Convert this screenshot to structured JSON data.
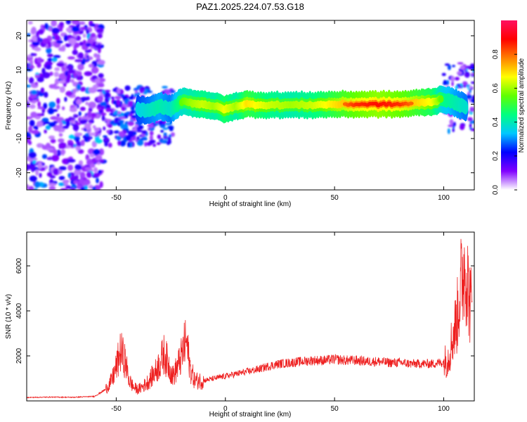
{
  "title": "PAZ1.2025.224.07.53.G18",
  "chart_data": [
    {
      "type": "heatmap",
      "xlabel": "Height of straight line (km)",
      "ylabel": "Frequency (Hz)",
      "xlim": [
        -91,
        114
      ],
      "ylim": [
        -25,
        24.5
      ],
      "xticks": [
        -50,
        0,
        50,
        100
      ],
      "yticks": [
        -20,
        -10,
        0,
        10,
        20
      ],
      "ridge": [
        {
          "x": -40,
          "y": -1.5,
          "a": 0.35
        },
        {
          "x": -35,
          "y": -2.0,
          "a": 0.4
        },
        {
          "x": -30,
          "y": -0.5,
          "a": 0.45
        },
        {
          "x": -25,
          "y": -1.5,
          "a": 0.4
        },
        {
          "x": -20,
          "y": 0.8,
          "a": 0.55
        },
        {
          "x": -15,
          "y": 0.3,
          "a": 0.6
        },
        {
          "x": -10,
          "y": 0.0,
          "a": 0.65
        },
        {
          "x": -5,
          "y": -0.5,
          "a": 0.6
        },
        {
          "x": 0,
          "y": -1.5,
          "a": 0.7
        },
        {
          "x": 5,
          "y": -0.5,
          "a": 0.6
        },
        {
          "x": 10,
          "y": 0.0,
          "a": 0.75
        },
        {
          "x": 20,
          "y": -0.2,
          "a": 0.65
        },
        {
          "x": 30,
          "y": -0.2,
          "a": 0.6
        },
        {
          "x": 40,
          "y": -0.2,
          "a": 0.65
        },
        {
          "x": 50,
          "y": 0.0,
          "a": 0.75
        },
        {
          "x": 60,
          "y": 0.0,
          "a": 0.85
        },
        {
          "x": 70,
          "y": 0.0,
          "a": 0.9
        },
        {
          "x": 80,
          "y": 0.0,
          "a": 0.85
        },
        {
          "x": 90,
          "y": 0.5,
          "a": 0.75
        },
        {
          "x": 95,
          "y": 0.8,
          "a": 0.7
        },
        {
          "x": 100,
          "y": 1.5,
          "a": 0.5
        },
        {
          "x": 105,
          "y": 0.5,
          "a": 0.45
        },
        {
          "x": 110,
          "y": -1.0,
          "a": 0.4
        }
      ],
      "colorbar": {
        "label": "Normalized spectral amplitude",
        "ticks": [
          0.0,
          0.2,
          0.4,
          0.6,
          0.8
        ],
        "tick_labels": [
          "0.0",
          "0.2",
          "0.4",
          "0.6",
          "0.8"
        ],
        "range": [
          0,
          1
        ],
        "colors": [
          "#ffffff",
          "#8000ff",
          "#0000ff",
          "#00c8ff",
          "#00ff80",
          "#60ff00",
          "#ffff00",
          "#ff8000",
          "#ff0000",
          "#ff1060"
        ]
      }
    },
    {
      "type": "line",
      "xlabel": "Height of straight line (km)",
      "ylabel": "SNR (10 * v/v)",
      "xlim": [
        -91,
        114
      ],
      "ylim": [
        0,
        7500
      ],
      "xticks": [
        -50,
        0,
        50,
        100
      ],
      "yticks": [
        2000,
        4000,
        6000
      ],
      "color": "#ee2020",
      "x": [
        -91,
        -80,
        -70,
        -60,
        -55,
        -52,
        -50,
        -48,
        -46,
        -44,
        -42,
        -40,
        -37,
        -35,
        -32,
        -30,
        -28,
        -26,
        -24,
        -22,
        -20,
        -18,
        -16,
        -14,
        -10,
        -5,
        0,
        5,
        10,
        15,
        20,
        25,
        30,
        35,
        40,
        45,
        50,
        55,
        60,
        65,
        70,
        75,
        80,
        85,
        90,
        95,
        98,
        100,
        102,
        104,
        106,
        107,
        108,
        109,
        110,
        111,
        112,
        113
      ],
      "y": [
        150,
        170,
        160,
        200,
        500,
        900,
        1500,
        2200,
        1800,
        900,
        600,
        500,
        700,
        900,
        1300,
        1700,
        2100,
        1600,
        1100,
        1500,
        2000,
        2700,
        1400,
        900,
        900,
        1000,
        1100,
        1200,
        1300,
        1400,
        1550,
        1650,
        1700,
        1750,
        1800,
        1800,
        1850,
        1800,
        1800,
        1750,
        1750,
        1700,
        1700,
        1650,
        1650,
        1650,
        1700,
        1700,
        1900,
        2800,
        3600,
        4500,
        5200,
        5800,
        6100,
        5200,
        4400,
        4100
      ]
    }
  ]
}
